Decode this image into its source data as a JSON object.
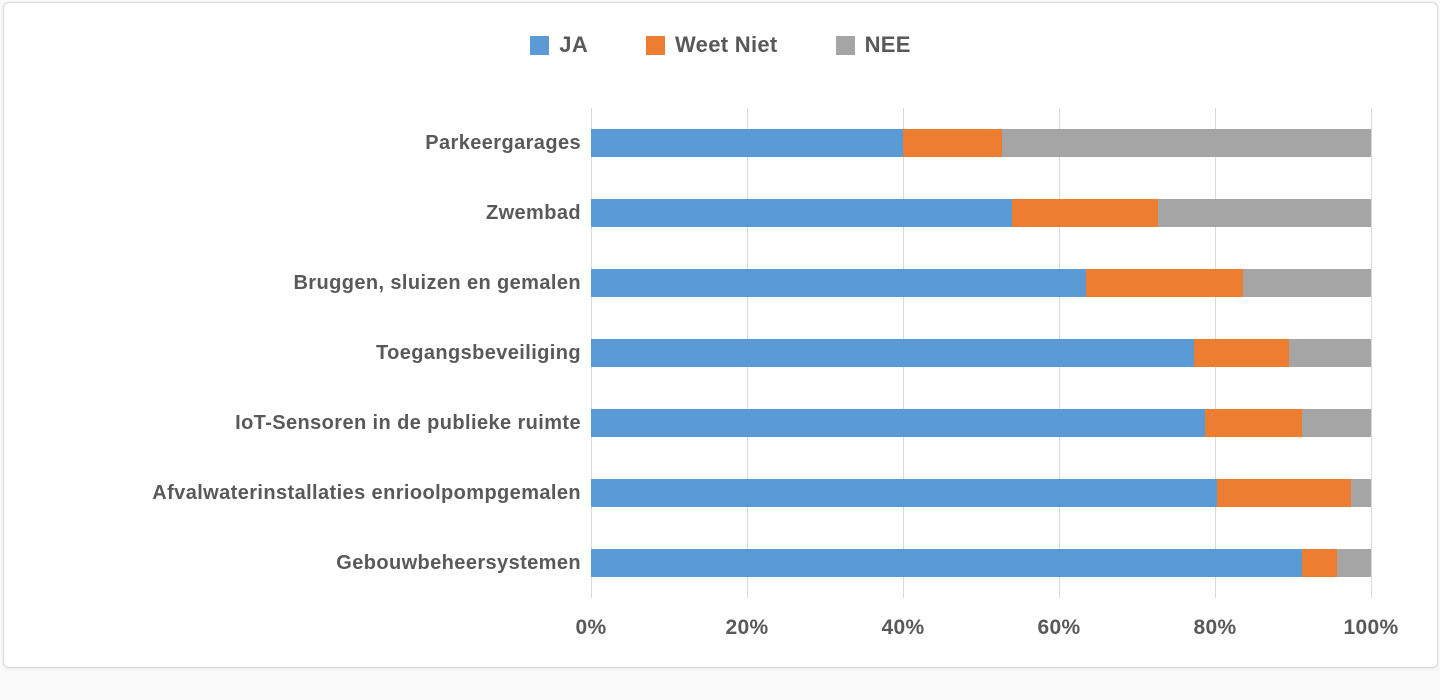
{
  "chart_data": {
    "type": "bar",
    "orientation": "horizontal",
    "stacked": true,
    "title": "",
    "xlabel": "",
    "ylabel": "",
    "xlim": [
      0,
      100
    ],
    "grid": "vertical",
    "legend_position": "top",
    "categories": [
      "Parkeergarages",
      "Zwembad",
      "Bruggen, sluizen en gemalen",
      "Toegangsbeveiliging",
      "IoT-Sensoren in de publieke ruimte",
      "Afvalwaterinstallaties enrioolpompgemalen",
      "Gebouwbeheersystemen"
    ],
    "series": [
      {
        "name": "JA",
        "color": "#5B9BD5",
        "values": [
          40.0,
          54.0,
          63.4,
          77.3,
          78.7,
          80.3,
          91.1
        ]
      },
      {
        "name": "Weet Niet",
        "color": "#ED7D31",
        "values": [
          12.7,
          18.7,
          20.2,
          12.2,
          12.4,
          17.1,
          4.5
        ]
      },
      {
        "name": "NEE",
        "color": "#A5A5A5",
        "values": [
          47.3,
          27.3,
          16.4,
          10.5,
          8.9,
          2.6,
          4.4
        ]
      }
    ],
    "x_ticks": [
      {
        "label": "0%",
        "value": 0
      },
      {
        "label": "20%",
        "value": 20
      },
      {
        "label": "40%",
        "value": 40
      },
      {
        "label": "60%",
        "value": 60
      },
      {
        "label": "80%",
        "value": 80
      },
      {
        "label": "100%",
        "value": 100
      }
    ],
    "colors": {
      "grid": "#D9D9D9",
      "text": "#595959",
      "background": "#FFFFFF",
      "card_border": "#D9D9D9"
    }
  }
}
